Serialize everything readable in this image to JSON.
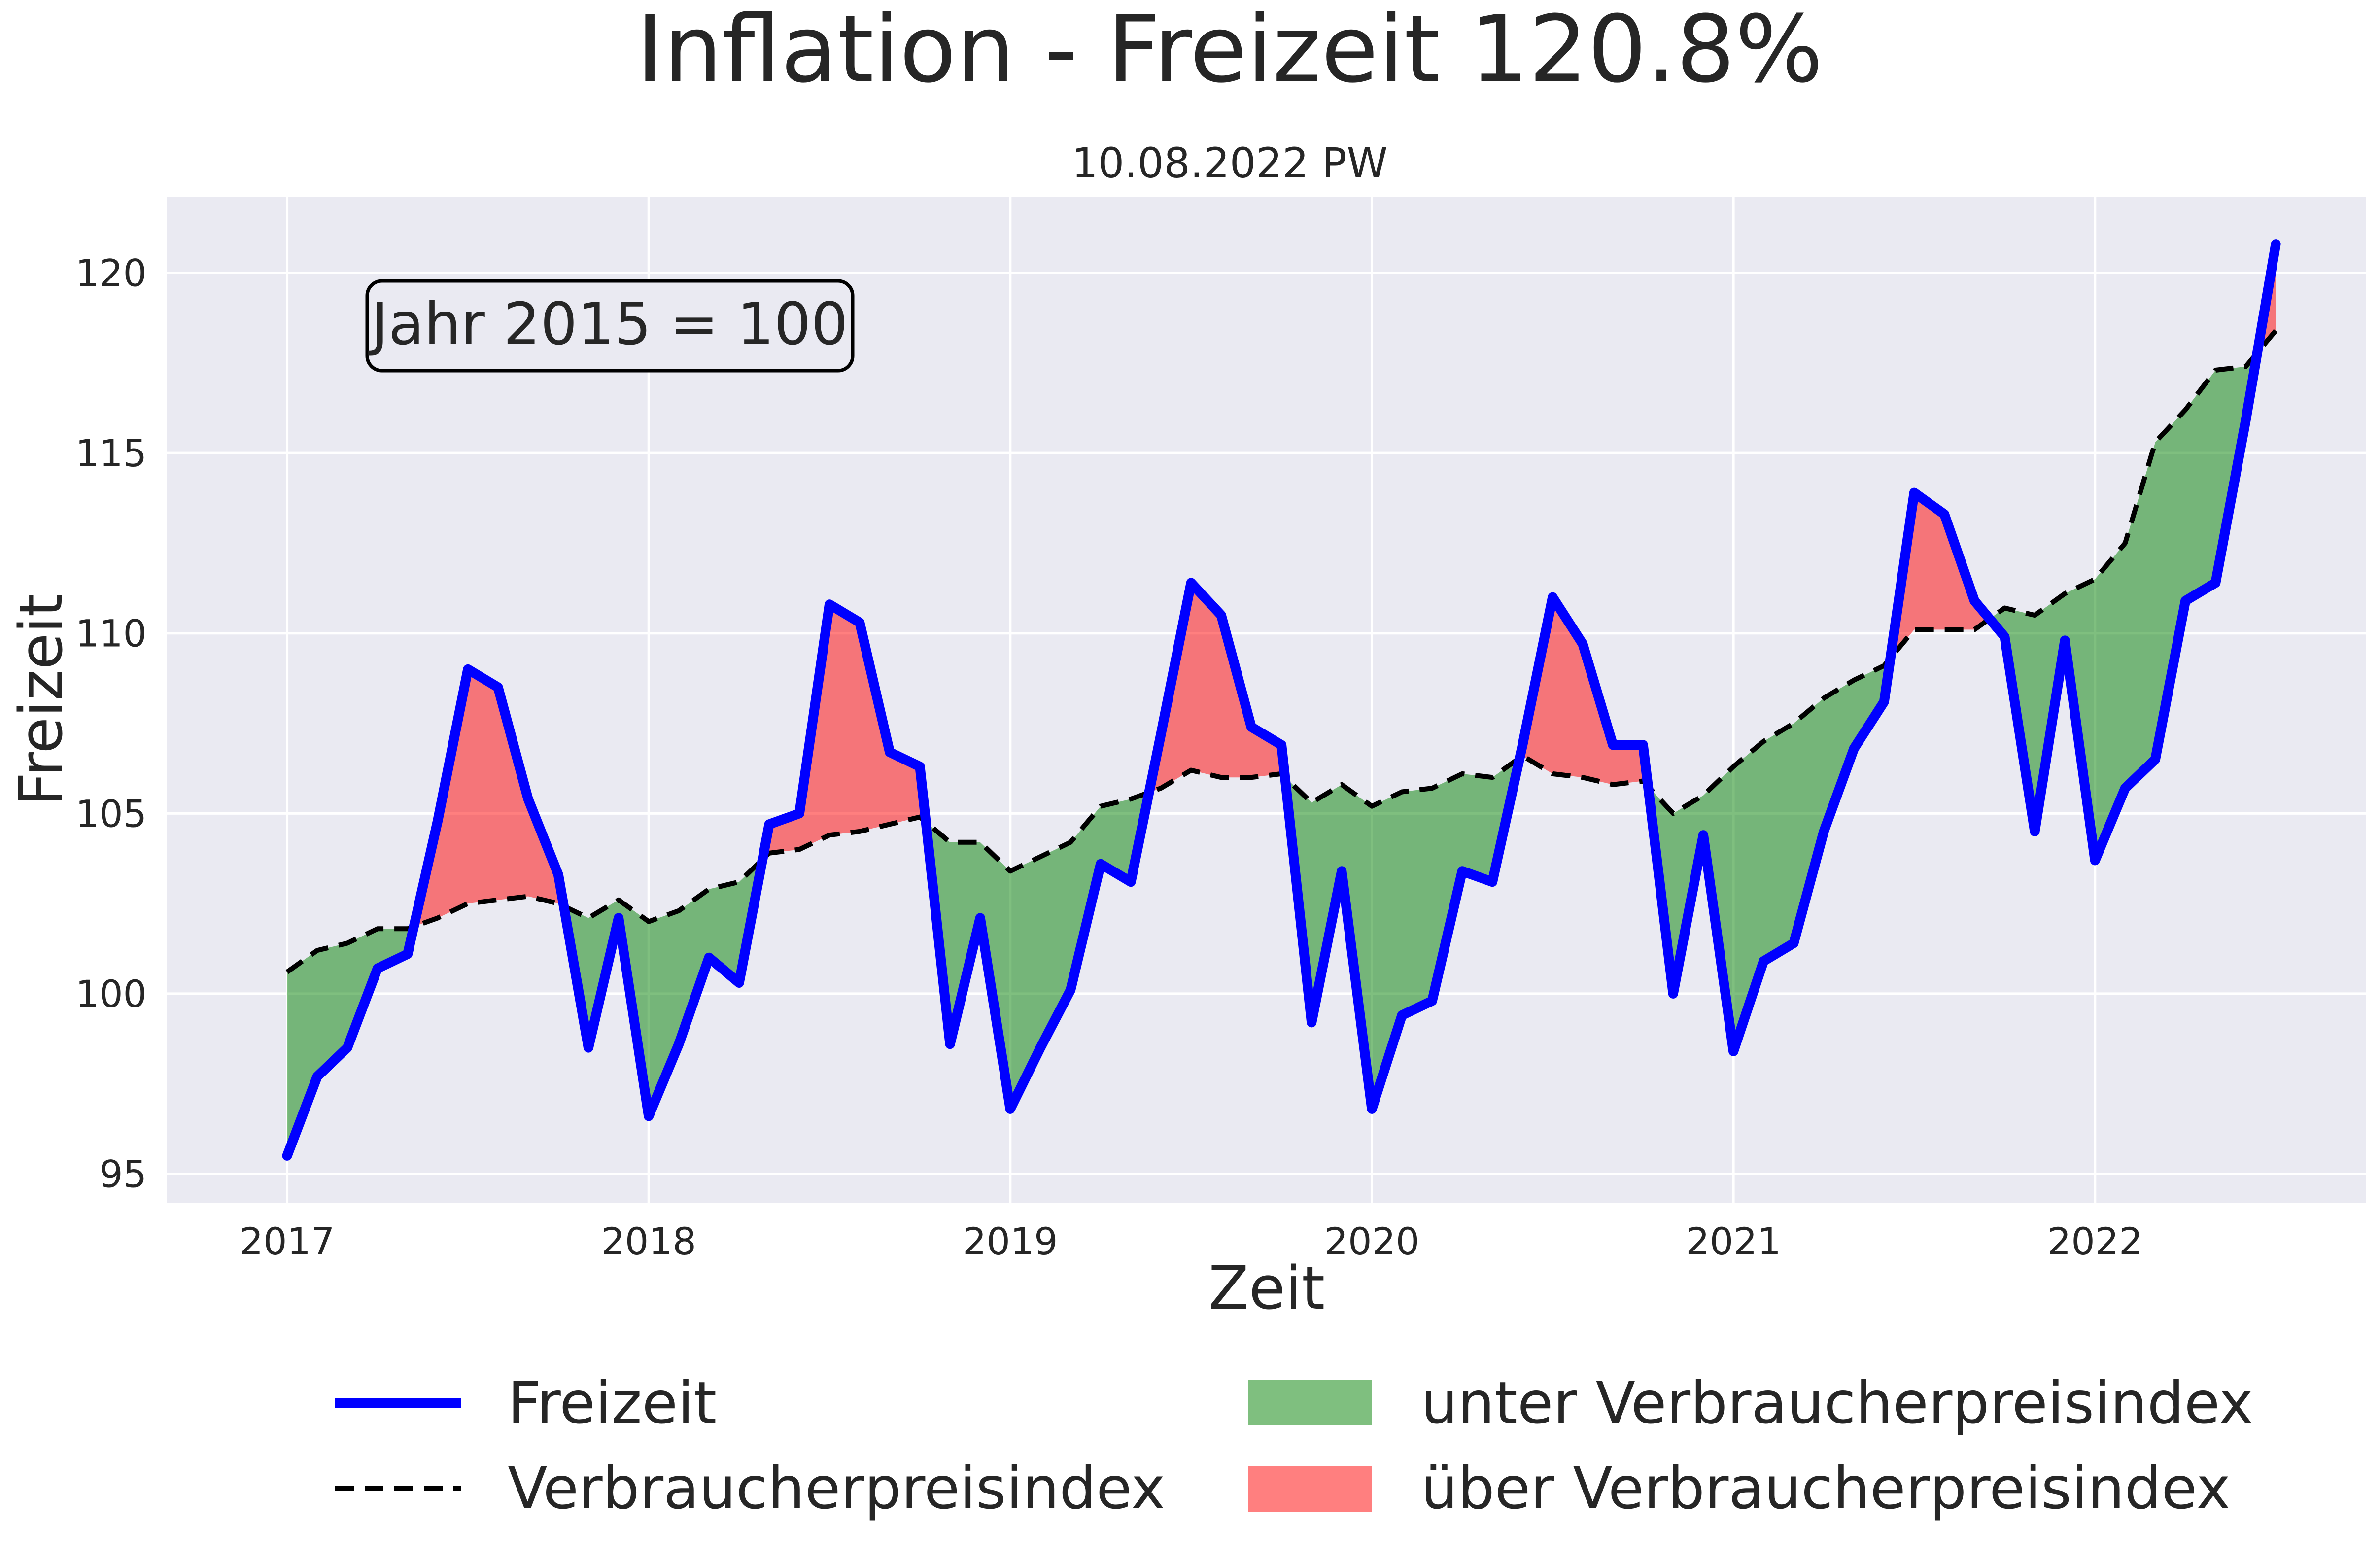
{
  "chart_data": {
    "type": "line",
    "title": "Inflation - Freizeit 120.8%",
    "subtitle": "10.08.2022 PW",
    "xlabel": "Zeit",
    "ylabel": "Freizeit",
    "annotation": "Jahr 2015 = 100",
    "x_ticks": [
      "2017",
      "2018",
      "2019",
      "2020",
      "2021",
      "2022"
    ],
    "y_ticks": [
      "95",
      "100",
      "105",
      "110",
      "115",
      "120"
    ],
    "xlim": [
      "2016-09",
      "2022-10"
    ],
    "ylim": [
      94.2,
      122.1
    ],
    "grid": true,
    "background_color": "#eaeaf2",
    "x": [
      "2017-01",
      "2017-02",
      "2017-03",
      "2017-04",
      "2017-05",
      "2017-06",
      "2017-07",
      "2017-08",
      "2017-09",
      "2017-10",
      "2017-11",
      "2017-12",
      "2018-01",
      "2018-02",
      "2018-03",
      "2018-04",
      "2018-05",
      "2018-06",
      "2018-07",
      "2018-08",
      "2018-09",
      "2018-10",
      "2018-11",
      "2018-12",
      "2019-01",
      "2019-02",
      "2019-03",
      "2019-04",
      "2019-05",
      "2019-06",
      "2019-07",
      "2019-08",
      "2019-09",
      "2019-10",
      "2019-11",
      "2019-12",
      "2020-01",
      "2020-02",
      "2020-03",
      "2020-04",
      "2020-05",
      "2020-06",
      "2020-07",
      "2020-08",
      "2020-09",
      "2020-10",
      "2020-11",
      "2020-12",
      "2021-01",
      "2021-02",
      "2021-03",
      "2021-04",
      "2021-05",
      "2021-06",
      "2021-07",
      "2021-08",
      "2021-09",
      "2021-10",
      "2021-11",
      "2021-12",
      "2022-01",
      "2022-02",
      "2022-03",
      "2022-04",
      "2022-05",
      "2022-06",
      "2022-07"
    ],
    "series": [
      {
        "name": "Freizeit",
        "color": "#0000ff",
        "style": "solid",
        "values": [
          95.5,
          97.7,
          98.5,
          100.7,
          101.1,
          104.8,
          109.0,
          108.5,
          105.4,
          103.3,
          98.5,
          102.1,
          96.6,
          98.6,
          101.0,
          100.3,
          104.7,
          105.0,
          110.8,
          110.3,
          106.7,
          106.3,
          98.6,
          102.1,
          96.8,
          98.5,
          100.1,
          103.6,
          103.1,
          107.2,
          111.4,
          110.5,
          107.4,
          106.9,
          99.2,
          103.4,
          96.8,
          99.4,
          99.8,
          103.4,
          103.1,
          106.9,
          111.0,
          109.7,
          106.9,
          106.9,
          100.0,
          104.4,
          98.4,
          100.9,
          101.4,
          104.5,
          106.8,
          108.1,
          113.9,
          113.3,
          110.9,
          109.9,
          104.5,
          109.8,
          103.7,
          105.7,
          106.5,
          110.9,
          111.4,
          115.9,
          120.8
        ]
      },
      {
        "name": "Verbraucherpreisindex",
        "color": "#000000",
        "style": "dashed",
        "values": [
          100.6,
          101.2,
          101.4,
          101.8,
          101.8,
          102.1,
          102.5,
          102.6,
          102.7,
          102.5,
          102.1,
          102.6,
          102.0,
          102.3,
          102.9,
          103.1,
          103.9,
          104.0,
          104.4,
          104.5,
          104.7,
          104.9,
          104.2,
          104.2,
          103.4,
          103.8,
          104.2,
          105.2,
          105.4,
          105.7,
          106.2,
          106.0,
          106.0,
          106.1,
          105.3,
          105.8,
          105.2,
          105.6,
          105.7,
          106.1,
          106.0,
          106.6,
          106.1,
          106.0,
          105.8,
          105.9,
          105.0,
          105.5,
          106.3,
          107.0,
          107.5,
          108.2,
          108.7,
          109.1,
          110.1,
          110.1,
          110.1,
          110.7,
          110.5,
          111.1,
          111.5,
          112.5,
          115.3,
          116.2,
          117.3,
          117.4,
          118.4
        ]
      }
    ],
    "fills": [
      {
        "name": "unter Verbraucherpreisindex",
        "color": "#008000",
        "alpha": 0.5,
        "condition": "Freizeit < Verbraucherpreisindex"
      },
      {
        "name": "über Verbraucherpreisindex",
        "color": "#ff0000",
        "alpha": 0.5,
        "condition": "Freizeit > Verbraucherpreisindex"
      }
    ],
    "legend": "bottom-center, two columns"
  }
}
